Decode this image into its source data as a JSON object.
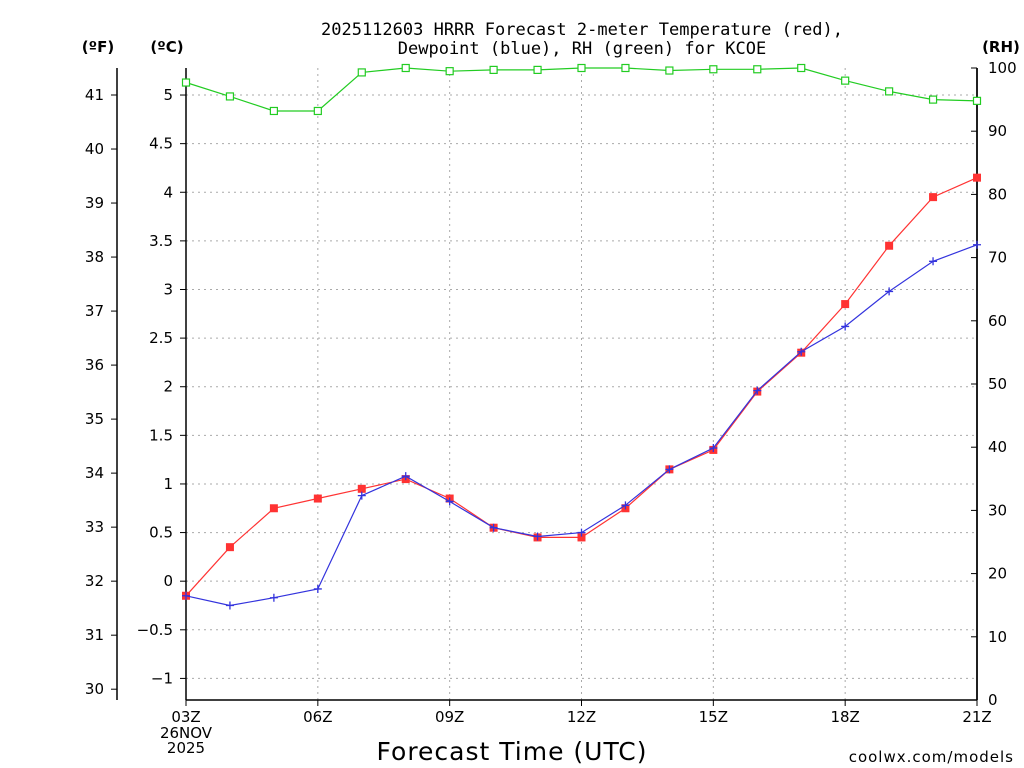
{
  "colors": {
    "temperature": "#ff3333",
    "dewpoint": "#3333dd",
    "rh": "#22cc22",
    "grid": "#aaaaaa",
    "credit": "#e8262c"
  },
  "chart_data": {
    "type": "line",
    "title": [
      "2025112603 HRRR Forecast 2-meter Temperature (red),",
      "Dewpoint (blue), RH (green) for KCOE"
    ],
    "xlabel": "Forecast Time (UTC)",
    "credit": "coolwx.com/models",
    "x_hours": [
      3,
      4,
      5,
      6,
      7,
      8,
      9,
      10,
      11,
      12,
      13,
      14,
      15,
      16,
      17,
      18,
      19,
      20,
      21
    ],
    "x_ticks": [
      {
        "hour": 3,
        "label": "03Z",
        "extra": [
          "26NOV",
          "2025"
        ]
      },
      {
        "hour": 6,
        "label": "06Z"
      },
      {
        "hour": 9,
        "label": "09Z"
      },
      {
        "hour": 12,
        "label": "12Z"
      },
      {
        "hour": 15,
        "label": "15Z"
      },
      {
        "hour": 18,
        "label": "18Z"
      },
      {
        "hour": 21,
        "label": "21Z"
      }
    ],
    "xlim": [
      3,
      21
    ],
    "axes": {
      "fahrenheit": {
        "unit_label": "(ºF)",
        "range": [
          29.8,
          41.5
        ],
        "ticks": [
          30,
          31,
          32,
          33,
          34,
          35,
          36,
          37,
          38,
          39,
          40,
          41
        ]
      },
      "celsius": {
        "unit_label": "(ºC)",
        "range": [
          -1.222,
          5.278
        ],
        "ticks": [
          -1,
          -0.5,
          0,
          0.5,
          1,
          1.5,
          2,
          2.5,
          3,
          3.5,
          4,
          4.5,
          5
        ]
      },
      "rh": {
        "unit_label": "(RH)",
        "range": [
          0,
          100
        ],
        "ticks": [
          0,
          10,
          20,
          30,
          40,
          50,
          60,
          70,
          80,
          90,
          100
        ]
      }
    },
    "series": [
      {
        "name": "Temperature",
        "units": "°C",
        "color": "#ff3333",
        "marker": "square-filled",
        "values": [
          -0.15,
          0.35,
          0.75,
          0.85,
          0.95,
          1.05,
          0.85,
          0.55,
          0.45,
          0.45,
          0.75,
          1.15,
          1.35,
          1.95,
          2.35,
          2.85,
          3.45,
          3.95,
          4.15
        ]
      },
      {
        "name": "Dewpoint",
        "units": "°C",
        "color": "#3333dd",
        "marker": "plus",
        "values": [
          -0.15,
          -0.25,
          -0.17,
          -0.08,
          0.88,
          1.08,
          0.82,
          0.55,
          0.46,
          0.5,
          0.78,
          1.15,
          1.37,
          1.96,
          2.36,
          2.62,
          2.98,
          3.29,
          3.46
        ]
      },
      {
        "name": "RH",
        "units": "%",
        "color": "#22cc22",
        "marker": "square-open",
        "values": [
          97.7,
          95.5,
          93.2,
          93.2,
          99.3,
          100,
          99.5,
          99.7,
          99.7,
          100,
          100,
          99.6,
          99.8,
          99.8,
          100,
          98,
          96.3,
          95,
          94.8
        ]
      }
    ]
  }
}
